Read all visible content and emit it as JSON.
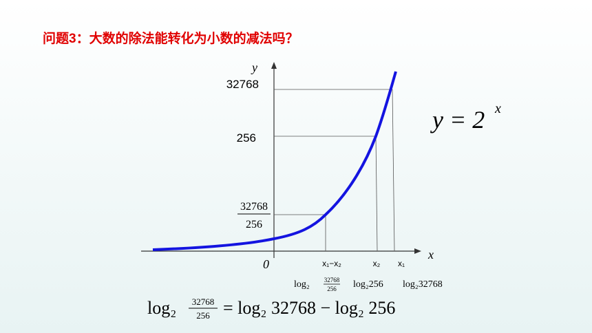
{
  "title": "问题3：大数的除法能转化为小数的减法吗？",
  "axes": {
    "y": "y",
    "x": "x",
    "origin": "0"
  },
  "y_labels": {
    "top": "32768",
    "middle": "256",
    "fraction": {
      "numerator": "32768",
      "denominator": "256"
    }
  },
  "x_labels": [
    "x₁−x₂",
    "x₂",
    "x₁"
  ],
  "log_labels": {
    "first": {
      "prefix": "log₂",
      "numerator": "32768",
      "denominator": "256"
    },
    "second": "log₂256",
    "third": "log₂32768"
  },
  "equation": {
    "base": "y = 2",
    "exponent": "x"
  },
  "formula": {
    "prefix": "log₂",
    "numerator": "32768",
    "denominator": "256",
    "rest": "= log₂ 32768 − log₂ 256"
  }
}
